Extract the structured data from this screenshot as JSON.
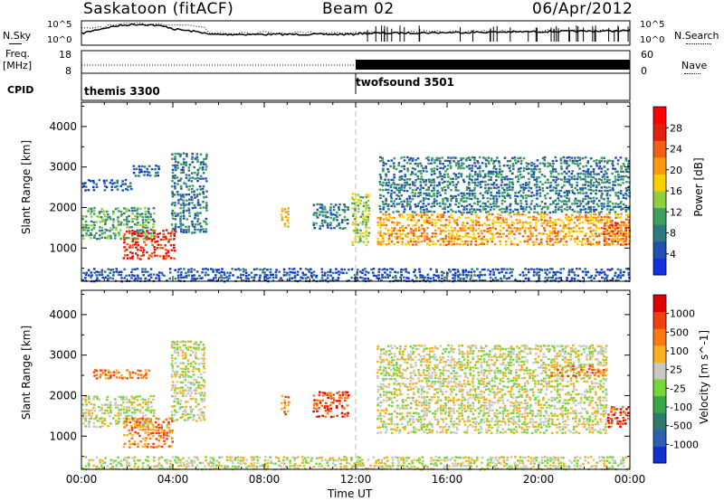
{
  "header": {
    "station": "Saskatoon (fitACF)",
    "beam": "Beam 02",
    "date": "06/Apr/2012"
  },
  "strips": {
    "nsky_label": "N.Sky",
    "nsearch_label": "N.Search",
    "left_ticks": [
      "10^5",
      "10^0"
    ],
    "right_ticks": [
      "10^5",
      "10^0"
    ],
    "freq_label_1": "Freq.",
    "freq_label_2": "[MHz]",
    "freq_ticks": [
      "18",
      "8"
    ],
    "nave_label": "Nave",
    "nave_ticks": [
      "60",
      "0"
    ],
    "cpid_label": "CPID",
    "cpid_modes": [
      "themis 3300",
      "twofsound 3501"
    ]
  },
  "colors": {
    "power_scale": [
      "#1030e0",
      "#2050b0",
      "#2f7a80",
      "#3fa060",
      "#8fd040",
      "#f8d000",
      "#f89a10",
      "#f06010",
      "#e02010",
      "#ff0000"
    ],
    "velocity_scale": [
      "#1030d0",
      "#2d5fb3",
      "#2f7a6a",
      "#3aa84a",
      "#77d63c",
      "#c8c8c4",
      "#f8b020",
      "#f87a10",
      "#f04010",
      "#e00000"
    ],
    "ground_scatter": "#c8c8c4"
  },
  "chart_data": [
    {
      "type": "heatmap",
      "title": "",
      "xlabel": "Time UT",
      "ylabel": "Slant Range [km]",
      "xlim": [
        "00:00",
        "24:00"
      ],
      "ylim": [
        180,
        4600
      ],
      "x_ticks": [
        "00:00",
        "04:00",
        "08:00",
        "12:00",
        "16:00",
        "20:00",
        "00:00"
      ],
      "y_ticks": [
        1000,
        2000,
        3000,
        4000
      ],
      "colorbar_label": "Power [dB]",
      "colorbar_ticks": [
        "4",
        "8",
        "12",
        "16",
        "20",
        "24",
        "28"
      ],
      "scatter_regions": [
        {
          "t0": 0.0,
          "t1": 3.2,
          "r0": 1250,
          "r1": 2050,
          "level": 3
        },
        {
          "t0": 0.0,
          "t1": 2.2,
          "r0": 2450,
          "r1": 2750,
          "level": 1
        },
        {
          "t0": 2.2,
          "t1": 3.4,
          "r0": 2800,
          "r1": 3100,
          "level": 1
        },
        {
          "t0": 1.8,
          "t1": 4.1,
          "r0": 750,
          "r1": 1500,
          "level": 8
        },
        {
          "t0": 3.9,
          "t1": 5.5,
          "r0": 1400,
          "r1": 3400,
          "level": 2
        },
        {
          "t0": 8.7,
          "t1": 9.1,
          "r0": 1550,
          "r1": 2050,
          "level": 5
        },
        {
          "t0": 10.1,
          "t1": 11.7,
          "r0": 1500,
          "r1": 2150,
          "level": 2
        },
        {
          "t0": 11.8,
          "t1": 12.6,
          "r0": 1100,
          "r1": 2400,
          "level": 4
        },
        {
          "t0": 12.9,
          "t1": 24.0,
          "r0": 1100,
          "r1": 1900,
          "level": 6
        },
        {
          "t0": 13.0,
          "t1": 24.0,
          "r0": 1900,
          "r1": 3300,
          "level": 2
        },
        {
          "t0": 22.8,
          "t1": 24.0,
          "r0": 1100,
          "r1": 1700,
          "level": 7
        },
        {
          "t0": 0.0,
          "t1": 24.0,
          "r0": 200,
          "r1": 550,
          "level": 1
        }
      ]
    },
    {
      "type": "heatmap",
      "title": "",
      "xlabel": "Time UT",
      "ylabel": "Slant Range [km]",
      "xlim": [
        "00:00",
        "24:00"
      ],
      "ylim": [
        180,
        4600
      ],
      "x_ticks": [
        "00:00",
        "04:00",
        "08:00",
        "12:00",
        "16:00",
        "20:00",
        "00:00"
      ],
      "y_ticks": [
        1000,
        2000,
        3000,
        4000
      ],
      "colorbar_label": "Velocity [m s^-1]",
      "colorbar_ticks": [
        "1000",
        "500",
        "100",
        "25",
        "-25",
        "-100",
        "-500",
        "-1000"
      ],
      "scatter_regions": [
        {
          "t0": 0.0,
          "t1": 3.2,
          "r0": 1250,
          "r1": 2050,
          "level": 5
        },
        {
          "t0": 0.5,
          "t1": 3.0,
          "r0": 2450,
          "r1": 2700,
          "level": 7
        },
        {
          "t0": 1.8,
          "t1": 4.0,
          "r0": 750,
          "r1": 1500,
          "level": 7
        },
        {
          "t0": 3.9,
          "t1": 5.4,
          "r0": 1400,
          "r1": 3400,
          "level": 5
        },
        {
          "t0": 8.7,
          "t1": 9.1,
          "r0": 1550,
          "r1": 2050,
          "level": 7
        },
        {
          "t0": 10.1,
          "t1": 11.7,
          "r0": 1500,
          "r1": 2150,
          "level": 8
        },
        {
          "t0": 12.9,
          "t1": 23.0,
          "r0": 1100,
          "r1": 3300,
          "level": 5
        },
        {
          "t0": 20.5,
          "t1": 23.0,
          "r0": 2500,
          "r1": 2800,
          "level": 7
        },
        {
          "t0": 23.0,
          "t1": 24.0,
          "r0": 1250,
          "r1": 1800,
          "level": 8
        },
        {
          "t0": 0.0,
          "t1": 24.0,
          "r0": 200,
          "r1": 550,
          "level": 5
        }
      ]
    }
  ]
}
